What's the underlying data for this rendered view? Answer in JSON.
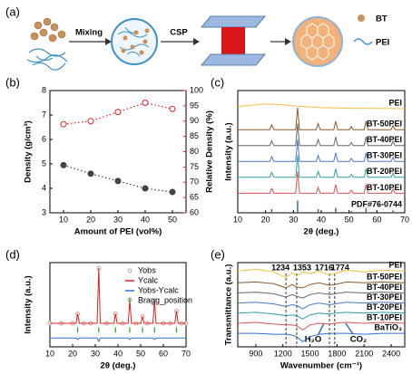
{
  "diagram": {
    "label": "(a)",
    "steps": [
      "Mixing",
      "CSP"
    ],
    "legend": [
      "BT",
      "PEI"
    ]
  },
  "chart_data": [
    {
      "type": "scatter",
      "label": "(b)",
      "x_label": "Amount of PEI (vol%)",
      "y_label": "Density (g/cm³)",
      "y2_label": "Relative Density (%)",
      "y2color": "#e02020",
      "xlim": [
        5,
        55
      ],
      "xticks": [
        10,
        20,
        30,
        40,
        50
      ],
      "ylim": [
        3,
        8
      ],
      "yticks": [
        3,
        4,
        5,
        6,
        7,
        8
      ],
      "y2lim": [
        60,
        100
      ],
      "y2ticks": [
        60,
        65,
        70,
        75,
        80,
        85,
        90,
        95,
        100
      ],
      "series": [
        {
          "name": "Density",
          "color": "#444444",
          "style": "dotted-markers",
          "marker_fill": true,
          "x": [
            10,
            20,
            30,
            40,
            50
          ],
          "values": [
            4.95,
            4.6,
            4.3,
            4.0,
            3.85
          ]
        },
        {
          "name": "Relative Density",
          "color": "#e02020",
          "style": "dotted-markers",
          "marker_fill": false,
          "axis": "y2",
          "x": [
            10,
            20,
            30,
            40,
            50
          ],
          "values": [
            89,
            90,
            93,
            96,
            94
          ]
        }
      ]
    },
    {
      "type": "line",
      "label": "(c)",
      "x_label": "2θ (deg.)",
      "y_label": "Intensity (a.u.)",
      "series_labels": "right-end",
      "xlim": [
        10,
        70
      ],
      "xticks": [
        10,
        20,
        30,
        40,
        50,
        60,
        70
      ],
      "ylim": [
        0,
        100
      ],
      "series": [
        {
          "name": "PEI",
          "color": "#f0c040",
          "style": "line",
          "x": [
            10,
            15,
            20,
            25,
            30,
            40,
            50,
            60,
            70
          ],
          "values": [
            87,
            88,
            89,
            88.5,
            87.5,
            86,
            85.5,
            85.3,
            85.2
          ]
        },
        {
          "name": "BT-50PEI",
          "color": "#8b5a2b",
          "style": "line",
          "x": [
            10,
            21.5,
            22.2,
            23,
            30.8,
            31.5,
            32.2,
            38.2,
            38.9,
            39.6,
            44.5,
            45.2,
            45.9,
            50.1,
            50.8,
            51.5,
            55.4,
            56.1,
            56.8,
            65.1,
            65.8,
            66.5,
            70
          ],
          "values": [
            68,
            68,
            72,
            68,
            68,
            86,
            68,
            68,
            73,
            68,
            68,
            75,
            68,
            68,
            70.5,
            68,
            68,
            75,
            68,
            68,
            71.5,
            68,
            68
          ]
        },
        {
          "name": "BT-40PEI",
          "color": "#666666",
          "style": "line",
          "x": [
            10,
            21.5,
            22.2,
            23,
            30.8,
            31.5,
            32.2,
            38.2,
            38.9,
            39.6,
            44.5,
            45.2,
            45.9,
            50.1,
            50.8,
            51.5,
            55.4,
            56.1,
            56.8,
            65.1,
            65.8,
            66.5,
            70
          ],
          "values": [
            55,
            55,
            59,
            55,
            55,
            73,
            55,
            55,
            60,
            55,
            55,
            62,
            55,
            55,
            57.5,
            55,
            55,
            62,
            55,
            55,
            58.5,
            55,
            55
          ]
        },
        {
          "name": "BT-30PEI",
          "color": "#4a78c0",
          "style": "line",
          "x": [
            10,
            21.5,
            22.2,
            23,
            30.8,
            31.5,
            32.2,
            38.2,
            38.9,
            39.6,
            44.5,
            45.2,
            45.9,
            50.1,
            50.8,
            51.5,
            55.4,
            56.1,
            56.8,
            65.1,
            65.8,
            66.5,
            70
          ],
          "values": [
            42,
            42,
            46,
            42,
            42,
            60,
            42,
            42,
            47,
            42,
            42,
            49,
            42,
            42,
            44.5,
            42,
            42,
            49,
            42,
            42,
            45.5,
            42,
            42
          ]
        },
        {
          "name": "BT-20PEI",
          "color": "#2aa0a0",
          "style": "line",
          "x": [
            10,
            21.5,
            22.2,
            23,
            30.8,
            31.5,
            32.2,
            38.2,
            38.9,
            39.6,
            44.5,
            45.2,
            45.9,
            50.1,
            50.8,
            51.5,
            55.4,
            56.1,
            56.8,
            65.1,
            65.8,
            66.5,
            70
          ],
          "values": [
            29,
            29,
            33,
            29,
            29,
            47,
            29,
            29,
            34,
            29,
            29,
            36,
            29,
            29,
            31.5,
            29,
            29,
            36,
            29,
            29,
            32.5,
            29,
            29
          ]
        },
        {
          "name": "BT-10PEI",
          "color": "#e05050",
          "style": "line",
          "x": [
            10,
            21.5,
            22.2,
            23,
            30.8,
            31.5,
            32.2,
            38.2,
            38.9,
            39.6,
            44.5,
            45.2,
            45.9,
            50.1,
            50.8,
            51.5,
            55.4,
            56.1,
            56.8,
            65.1,
            65.8,
            66.5,
            70
          ],
          "values": [
            16,
            16,
            20,
            16,
            16,
            34,
            16,
            16,
            21,
            16,
            16,
            23,
            16,
            16,
            18.5,
            16,
            16,
            23,
            16,
            16,
            19.5,
            16,
            16
          ]
        },
        {
          "name": "PDF#76-0744",
          "color": "#2f6f8f",
          "style": "sticks",
          "x": [
            22.2,
            31.5,
            38.9,
            45.2,
            50.8,
            56.1,
            65.8
          ],
          "values": [
            3,
            10,
            3,
            4,
            1.5,
            4,
            2
          ]
        }
      ]
    },
    {
      "type": "line",
      "label": "(d)",
      "x_label": "2θ (deg.)",
      "y_label": "Intensity (a.u.)",
      "legend": "upper right",
      "xlim": [
        10,
        70
      ],
      "xticks": [
        10,
        20,
        30,
        40,
        50,
        60,
        70
      ],
      "ylim": [
        -25,
        100
      ],
      "series": [
        {
          "name": "Yobs",
          "color": "#c9a0a0",
          "style": "markers",
          "marker_fill": false,
          "x": [
            10,
            15,
            20,
            22.2,
            25,
            28,
            31.5,
            35,
            38.9,
            42,
            45.2,
            48,
            50.8,
            53,
            56.1,
            60,
            63,
            65.8,
            68,
            70
          ],
          "values": [
            10,
            10,
            10,
            24,
            10,
            10,
            92,
            10,
            24,
            10,
            45,
            10,
            20,
            10,
            43,
            10,
            10,
            28,
            10,
            10
          ]
        },
        {
          "name": "Ycalc",
          "color": "#e02020",
          "style": "line",
          "x": [
            10,
            21.5,
            22.2,
            23,
            30.8,
            31.5,
            32.2,
            38.2,
            38.9,
            39.6,
            44.5,
            45.2,
            45.9,
            50.1,
            50.8,
            51.5,
            55.4,
            56.1,
            56.8,
            65.1,
            65.8,
            66.5,
            70
          ],
          "values": [
            10,
            10,
            24,
            10,
            10,
            92,
            10,
            10,
            24,
            10,
            10,
            45,
            10,
            10,
            20,
            10,
            10,
            43,
            10,
            10,
            28,
            10,
            10
          ]
        },
        {
          "name": "Yobs-Ycalc",
          "color": "#3070d0",
          "style": "line",
          "x": [
            10,
            21.5,
            22.2,
            23,
            30.8,
            31.5,
            32.2,
            44.5,
            45.2,
            45.9,
            55.4,
            56.1,
            56.8,
            70
          ],
          "values": [
            -12,
            -12,
            -14,
            -12,
            -12,
            -17,
            -12,
            -12,
            -14,
            -12,
            -12,
            -14,
            -12,
            -12
          ]
        },
        {
          "name": "Bragg_position",
          "color": "#30a030",
          "style": "ticks",
          "x": [
            22.2,
            31.5,
            38.9,
            45.2,
            50.8,
            56.1,
            65.8
          ],
          "values": [
            0,
            0,
            0,
            0,
            0,
            0,
            0
          ]
        }
      ]
    },
    {
      "type": "line",
      "label": "(e)",
      "x_label": "Wavenumber (cm⁻¹)",
      "y_label": "Transmittance (a.u.)",
      "series_labels": "right-end",
      "xlim": [
        700,
        2550
      ],
      "xticks": [
        900,
        1200,
        1500,
        1800,
        2100,
        2400
      ],
      "ylim": [
        0,
        100
      ],
      "vlines": [
        1234,
        1353,
        1716,
        1774
      ],
      "annotations": [
        "H₂O",
        "CO₂"
      ],
      "series": [
        {
          "name": "PEI",
          "color": "#f0c040",
          "style": "line",
          "x": [
            700,
            900,
            1100,
            1234,
            1300,
            1353,
            1420,
            1500,
            1600,
            1716,
            1774,
            1900,
            2100,
            2300,
            2550
          ],
          "values": [
            90,
            92,
            89,
            82,
            88,
            84,
            89,
            87,
            90,
            85,
            87,
            91,
            89,
            91,
            90
          ]
        },
        {
          "name": "BT-50PEI",
          "color": "#8b5a2b",
          "style": "line",
          "x": [
            700,
            900,
            1100,
            1234,
            1300,
            1353,
            1420,
            1500,
            1600,
            1716,
            1774,
            1900,
            2100,
            2300,
            2550
          ],
          "values": [
            76,
            77,
            75,
            70,
            74,
            71,
            70,
            74,
            76,
            73,
            74,
            77,
            76,
            77,
            76
          ]
        },
        {
          "name": "BT-40PEI",
          "color": "#666666",
          "style": "line",
          "x": [
            700,
            900,
            1100,
            1234,
            1300,
            1353,
            1420,
            1500,
            1600,
            1716,
            1774,
            1900,
            2100,
            2300,
            2550
          ],
          "values": [
            64,
            65,
            63,
            59,
            62,
            60,
            58,
            62,
            64,
            62,
            63,
            65,
            64,
            65,
            64
          ]
        },
        {
          "name": "BT-30PEI",
          "color": "#4a78c0",
          "style": "line",
          "x": [
            700,
            900,
            1100,
            1234,
            1300,
            1353,
            1420,
            1500,
            1600,
            1716,
            1774,
            1900,
            2100,
            2300,
            2550
          ],
          "values": [
            52,
            53,
            51,
            48,
            50,
            49,
            45,
            50,
            52,
            50,
            51,
            53,
            52,
            53,
            52
          ]
        },
        {
          "name": "BT-20PEI",
          "color": "#2aa0a0",
          "style": "line",
          "x": [
            700,
            900,
            1100,
            1234,
            1300,
            1353,
            1420,
            1500,
            1600,
            1716,
            1774,
            1900,
            2100,
            2300,
            2550
          ],
          "values": [
            40,
            41,
            39,
            37,
            38,
            37,
            33,
            38,
            40,
            39,
            40,
            41,
            40,
            41,
            40
          ]
        },
        {
          "name": "BT-10PEI",
          "color": "#e05050",
          "style": "line",
          "x": [
            700,
            900,
            1100,
            1234,
            1300,
            1353,
            1420,
            1500,
            1600,
            1716,
            1774,
            1900,
            2100,
            2300,
            2550
          ],
          "values": [
            28,
            29,
            27,
            26,
            26,
            25,
            20,
            26,
            28,
            27,
            28,
            29,
            28,
            29,
            28
          ]
        },
        {
          "name": "BaTiO₃",
          "color": "#3070d0",
          "style": "line",
          "x": [
            700,
            900,
            1100,
            1234,
            1300,
            1353,
            1420,
            1500,
            1600,
            1716,
            1774,
            1900,
            2100,
            2300,
            2550
          ],
          "values": [
            16,
            16,
            15,
            15,
            14,
            12,
            6,
            12,
            15,
            16,
            16,
            16,
            15,
            16,
            16
          ]
        }
      ]
    }
  ]
}
